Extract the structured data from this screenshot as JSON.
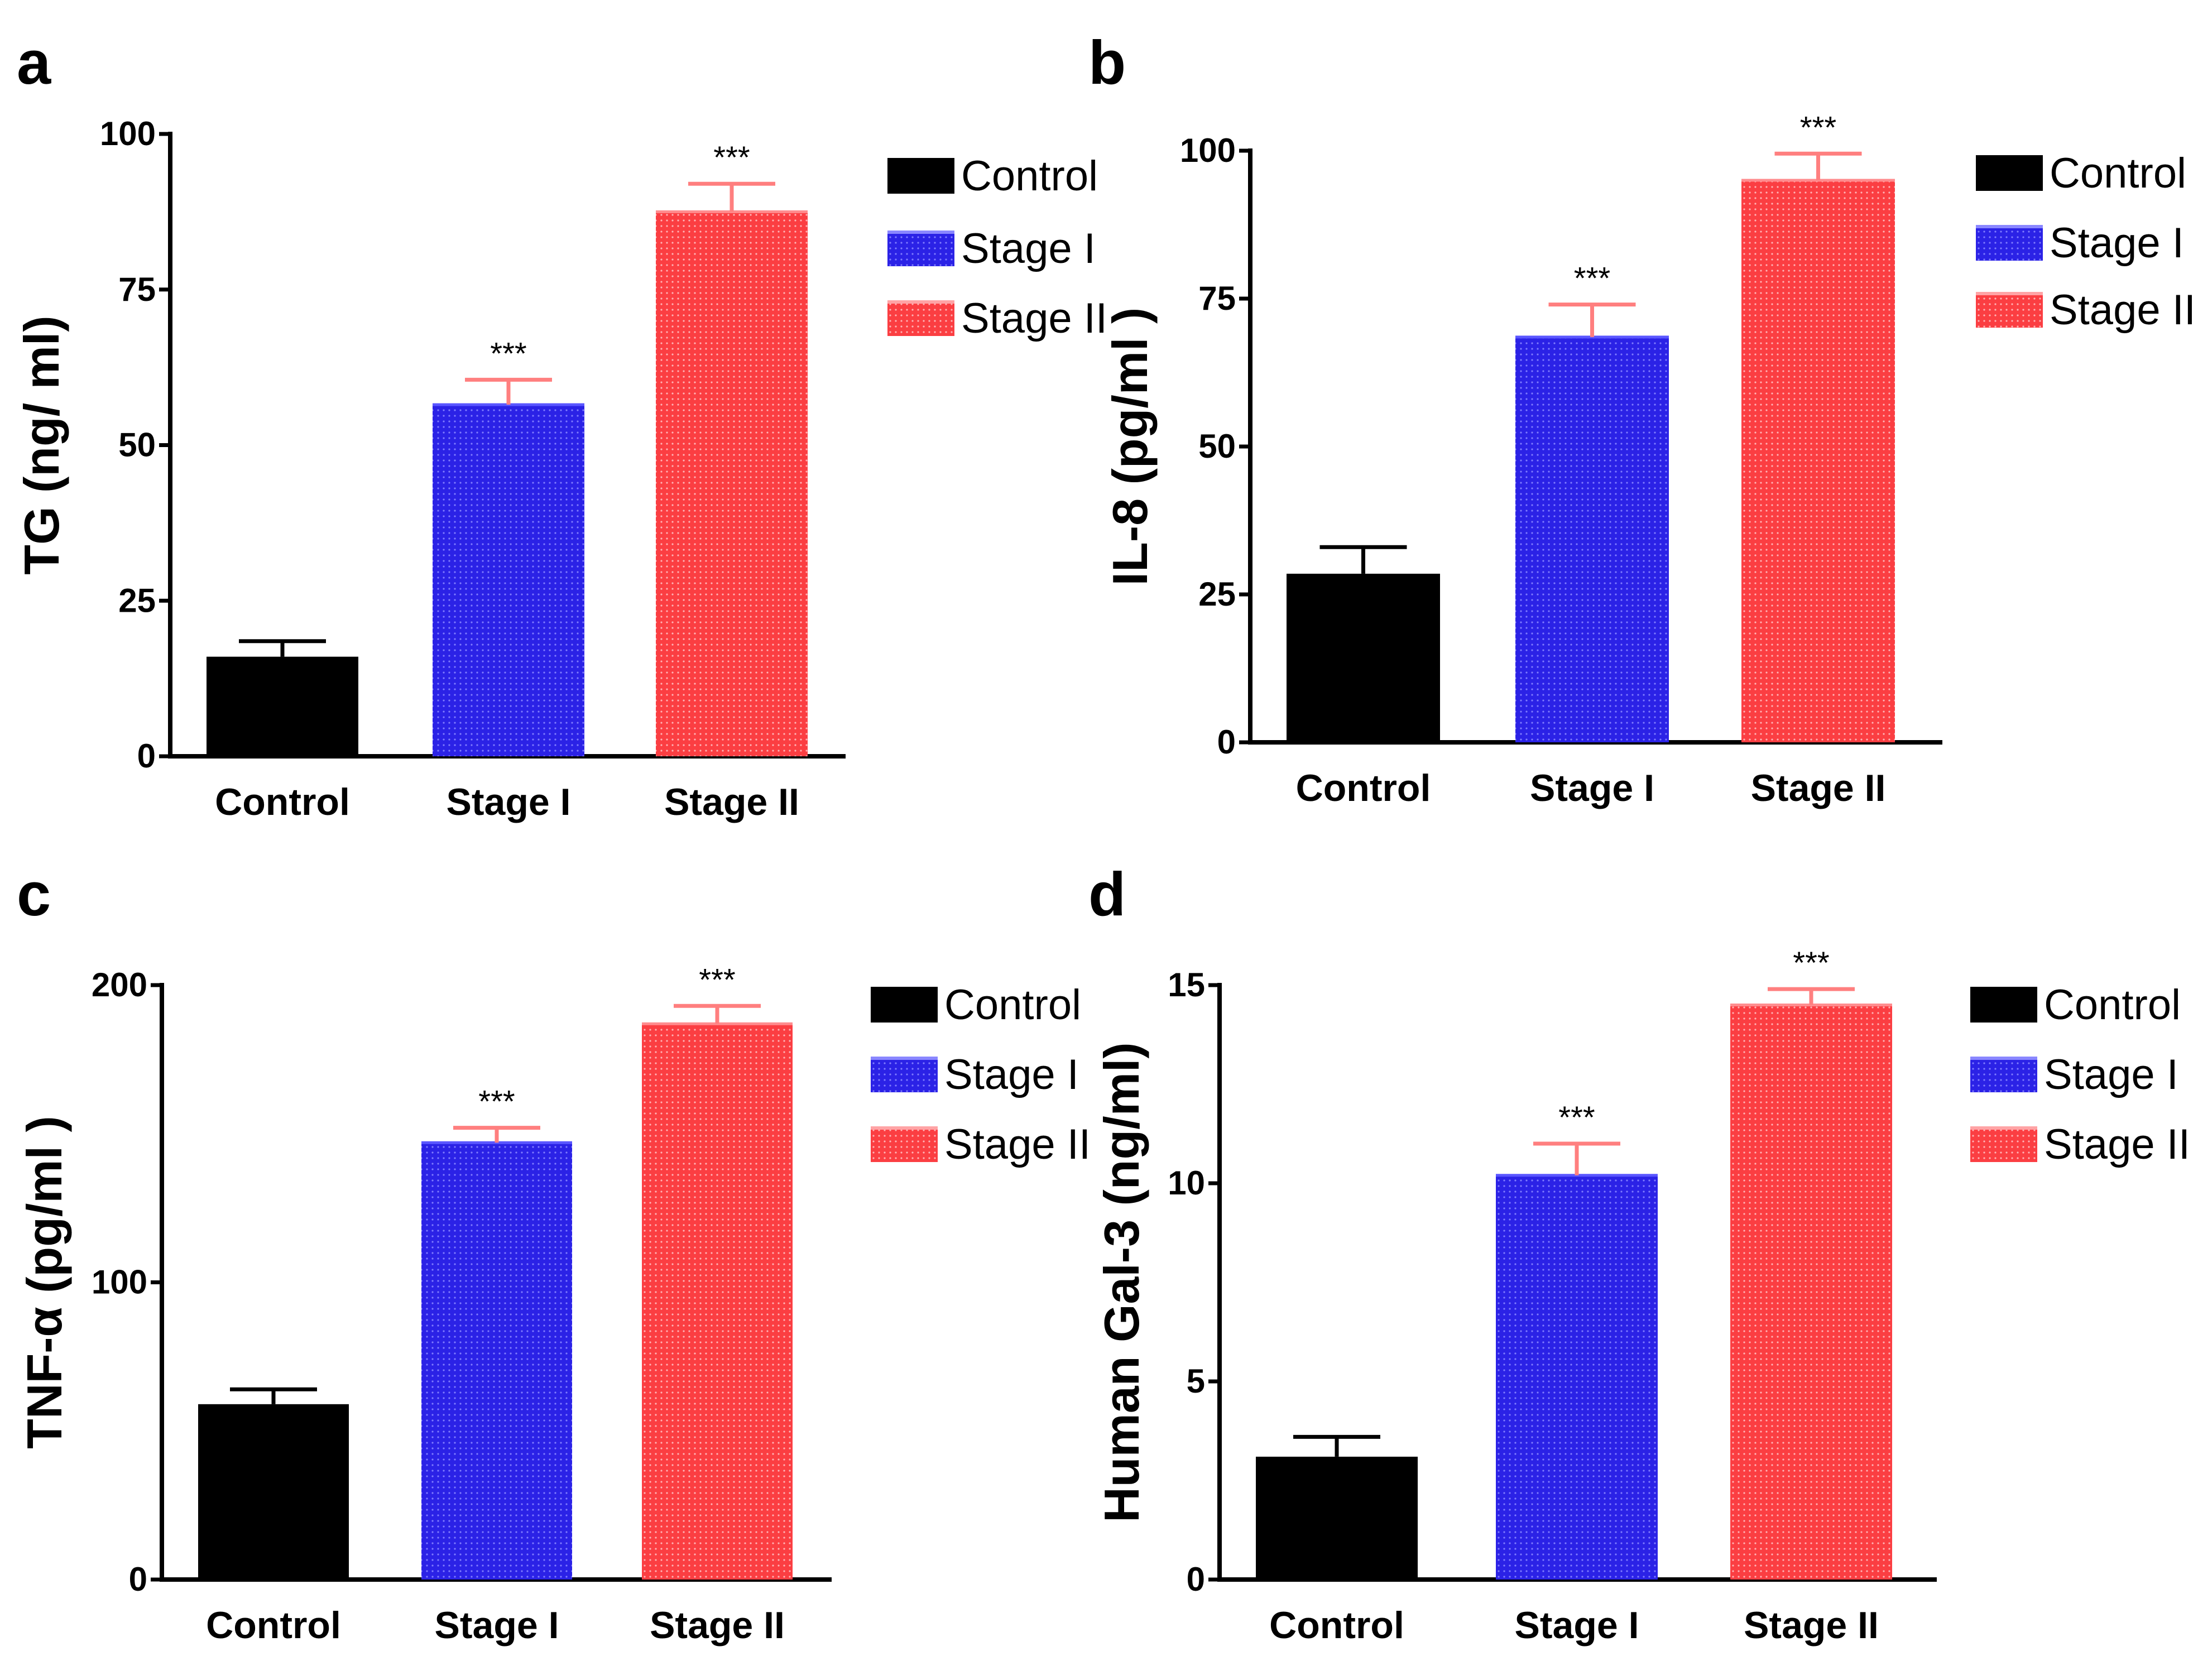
{
  "colors": {
    "control": "#000000",
    "stage1": "#2b22e6",
    "stage2": "#fb3e42",
    "error_control": "#000000",
    "error_stage": "#ff7f7f"
  },
  "chart_data": [
    {
      "panel": "a",
      "type": "bar",
      "ylabel": "TG (ng/ ml)",
      "categories": [
        "Control",
        "Stage I",
        "Stage II"
      ],
      "values": [
        16,
        56.5,
        87.5
      ],
      "errors": [
        2.5,
        4,
        4.5
      ],
      "significance": [
        "",
        "***",
        "***"
      ],
      "ylim": [
        0,
        100
      ],
      "yticks": [
        0,
        25,
        50,
        75,
        100
      ],
      "legend": [
        "Control",
        "Stage I",
        "Stage II"
      ]
    },
    {
      "panel": "b",
      "type": "bar",
      "ylabel": "IL-8 (pg/ml )",
      "categories": [
        "Control",
        "Stage I",
        "Stage II"
      ],
      "values": [
        28.5,
        68.5,
        95
      ],
      "errors": [
        4.5,
        5.5,
        4.5
      ],
      "significance": [
        "",
        "***",
        "***"
      ],
      "ylim": [
        0,
        100
      ],
      "yticks": [
        0,
        25,
        50,
        75,
        100
      ],
      "legend": [
        "Control",
        "Stage I",
        "Stage II"
      ]
    },
    {
      "panel": "c",
      "type": "bar",
      "ylabel": "TNF-α (pg/ml )",
      "categories": [
        "Control",
        "Stage I",
        "Stage II"
      ],
      "values": [
        59,
        147,
        187
      ],
      "errors": [
        5,
        5,
        6
      ],
      "significance": [
        "",
        "***",
        "***"
      ],
      "ylim": [
        0,
        200
      ],
      "yticks": [
        0,
        100,
        200
      ],
      "legend": [
        "Control",
        "Stage I",
        "Stage II"
      ]
    },
    {
      "panel": "d",
      "type": "bar",
      "ylabel": "Human Gal-3 (ng/ml)",
      "categories": [
        "Control",
        "Stage I",
        "Stage II"
      ],
      "values": [
        3.1,
        10.2,
        14.5
      ],
      "errors": [
        0.5,
        0.8,
        0.4
      ],
      "significance": [
        "",
        "***",
        "***"
      ],
      "ylim": [
        0,
        15
      ],
      "yticks": [
        0,
        5,
        10,
        15
      ],
      "legend": [
        "Control",
        "Stage I",
        "Stage II"
      ]
    }
  ]
}
